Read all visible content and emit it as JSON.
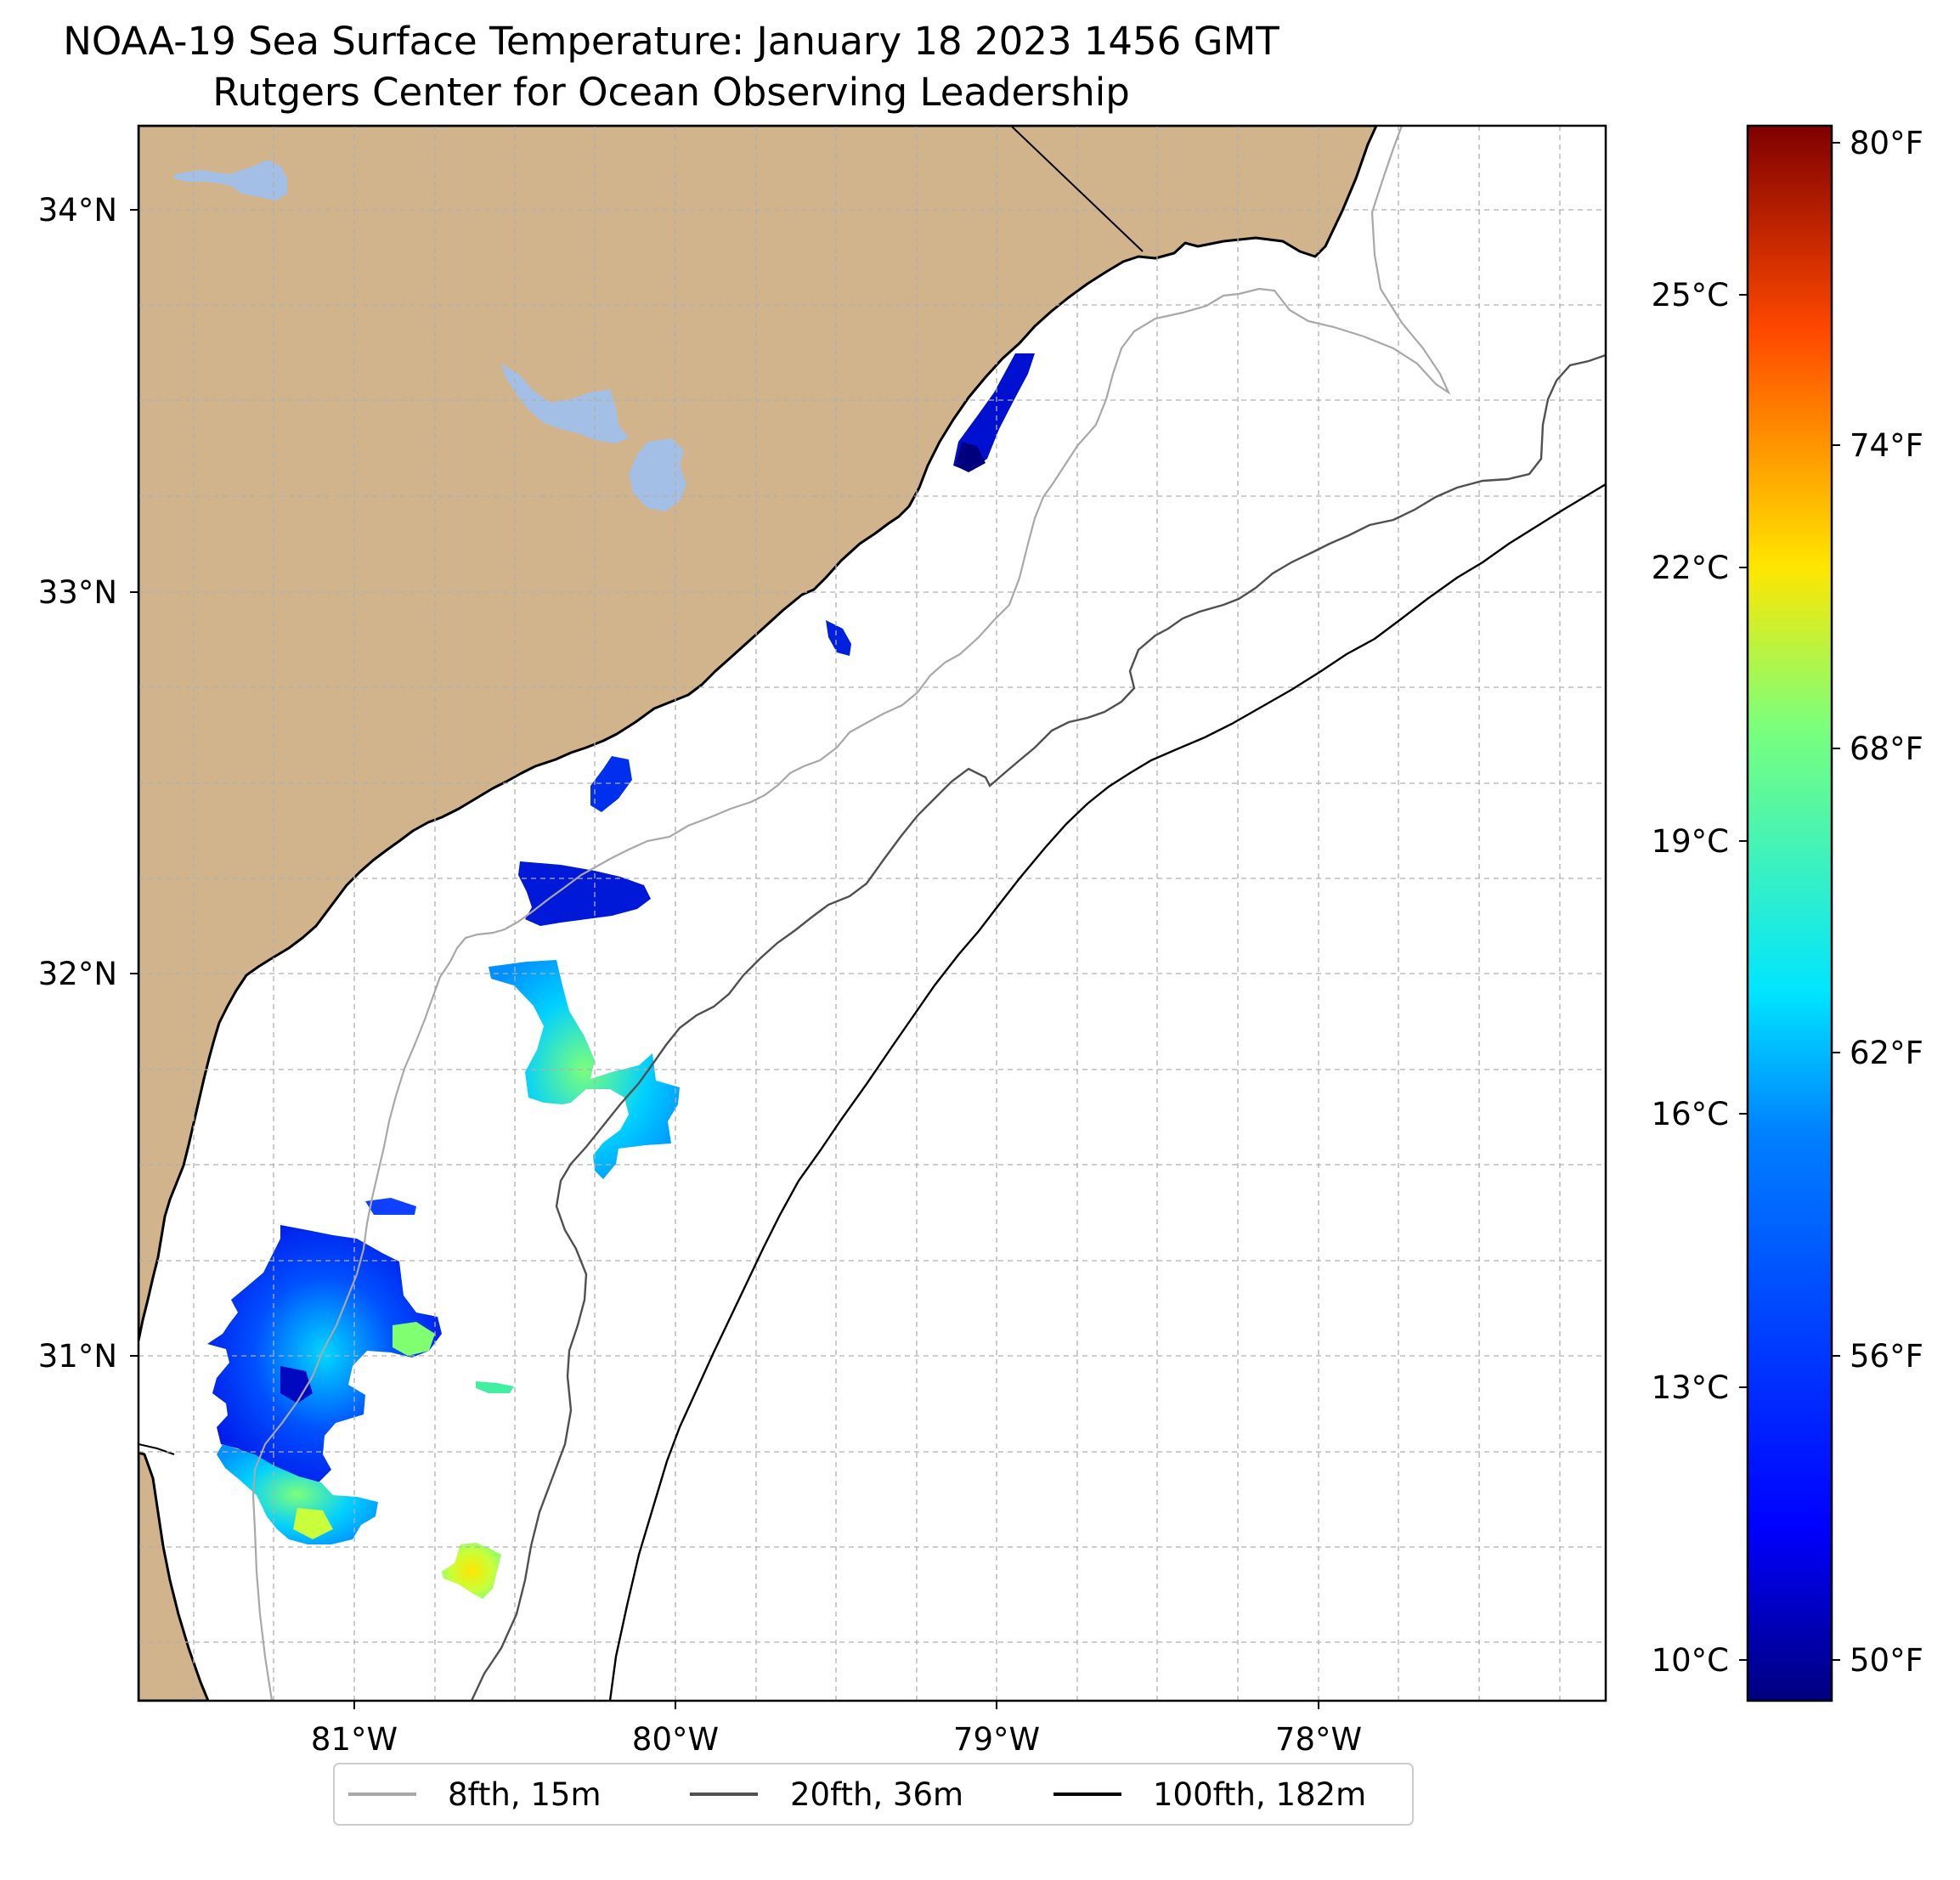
{
  "title": {
    "line1": "NOAA-19 Sea Surface Temperature: January 18 2023 1456 GMT",
    "line2": "Rutgers Center for Ocean Observing Leadership"
  },
  "map": {
    "lon_range": [
      -81.68,
      -77.12
    ],
    "lat_range": [
      30.25,
      34.22
    ],
    "gridlines": true,
    "land_color": "#d2b48c",
    "lake_color": "#a3bfe6",
    "lat_ticks": [
      "34°N",
      "33°N",
      "32°N",
      "31°N"
    ],
    "lon_ticks": [
      "81°W",
      "80°W",
      "79°W",
      "78°W"
    ],
    "sst_patches": [
      {
        "region": "near 33.45N 79.1W",
        "approx_temp_c": 10.5
      },
      {
        "region": "near 32.9N 79.5W",
        "approx_temp_c": 11.0
      },
      {
        "region": "near 32.5N 80.2W",
        "approx_temp_c": 11.5
      },
      {
        "region": "near 32.25N 80.3W",
        "approx_temp_c": 10.5
      },
      {
        "region": "near 31.8N 80.4W",
        "approx_temp_c": 15.5
      },
      {
        "region": "near 31.65N 80.05W",
        "approx_temp_c": 15.0
      },
      {
        "region": "near 31.0N 81.2W",
        "approx_temp_c": 12.5
      },
      {
        "region": "near 30.55N 81.05W",
        "approx_temp_c": 17.5
      },
      {
        "region": "near 30.35N 80.6W",
        "approx_temp_c": 20.5
      }
    ]
  },
  "colorbar": {
    "colors": [
      "#00007f",
      "#0000ff",
      "#0080ff",
      "#00e5ff",
      "#7dff7a",
      "#ffe600",
      "#ff4800",
      "#7f0000"
    ],
    "celsius_ticks": [
      "25°C",
      "22°C",
      "19°C",
      "16°C",
      "13°C",
      "10°C"
    ],
    "fahrenheit_ticks": [
      "80°F",
      "74°F",
      "68°F",
      "62°F",
      "56°F",
      "50°F"
    ]
  },
  "legend": {
    "placement": "bottom-center",
    "entries": [
      {
        "label": "8fth, 15m",
        "color": "#a8a8a8"
      },
      {
        "label": "20fth, 36m",
        "color": "#505050"
      },
      {
        "label": "100fth, 182m",
        "color": "#000000"
      }
    ]
  }
}
